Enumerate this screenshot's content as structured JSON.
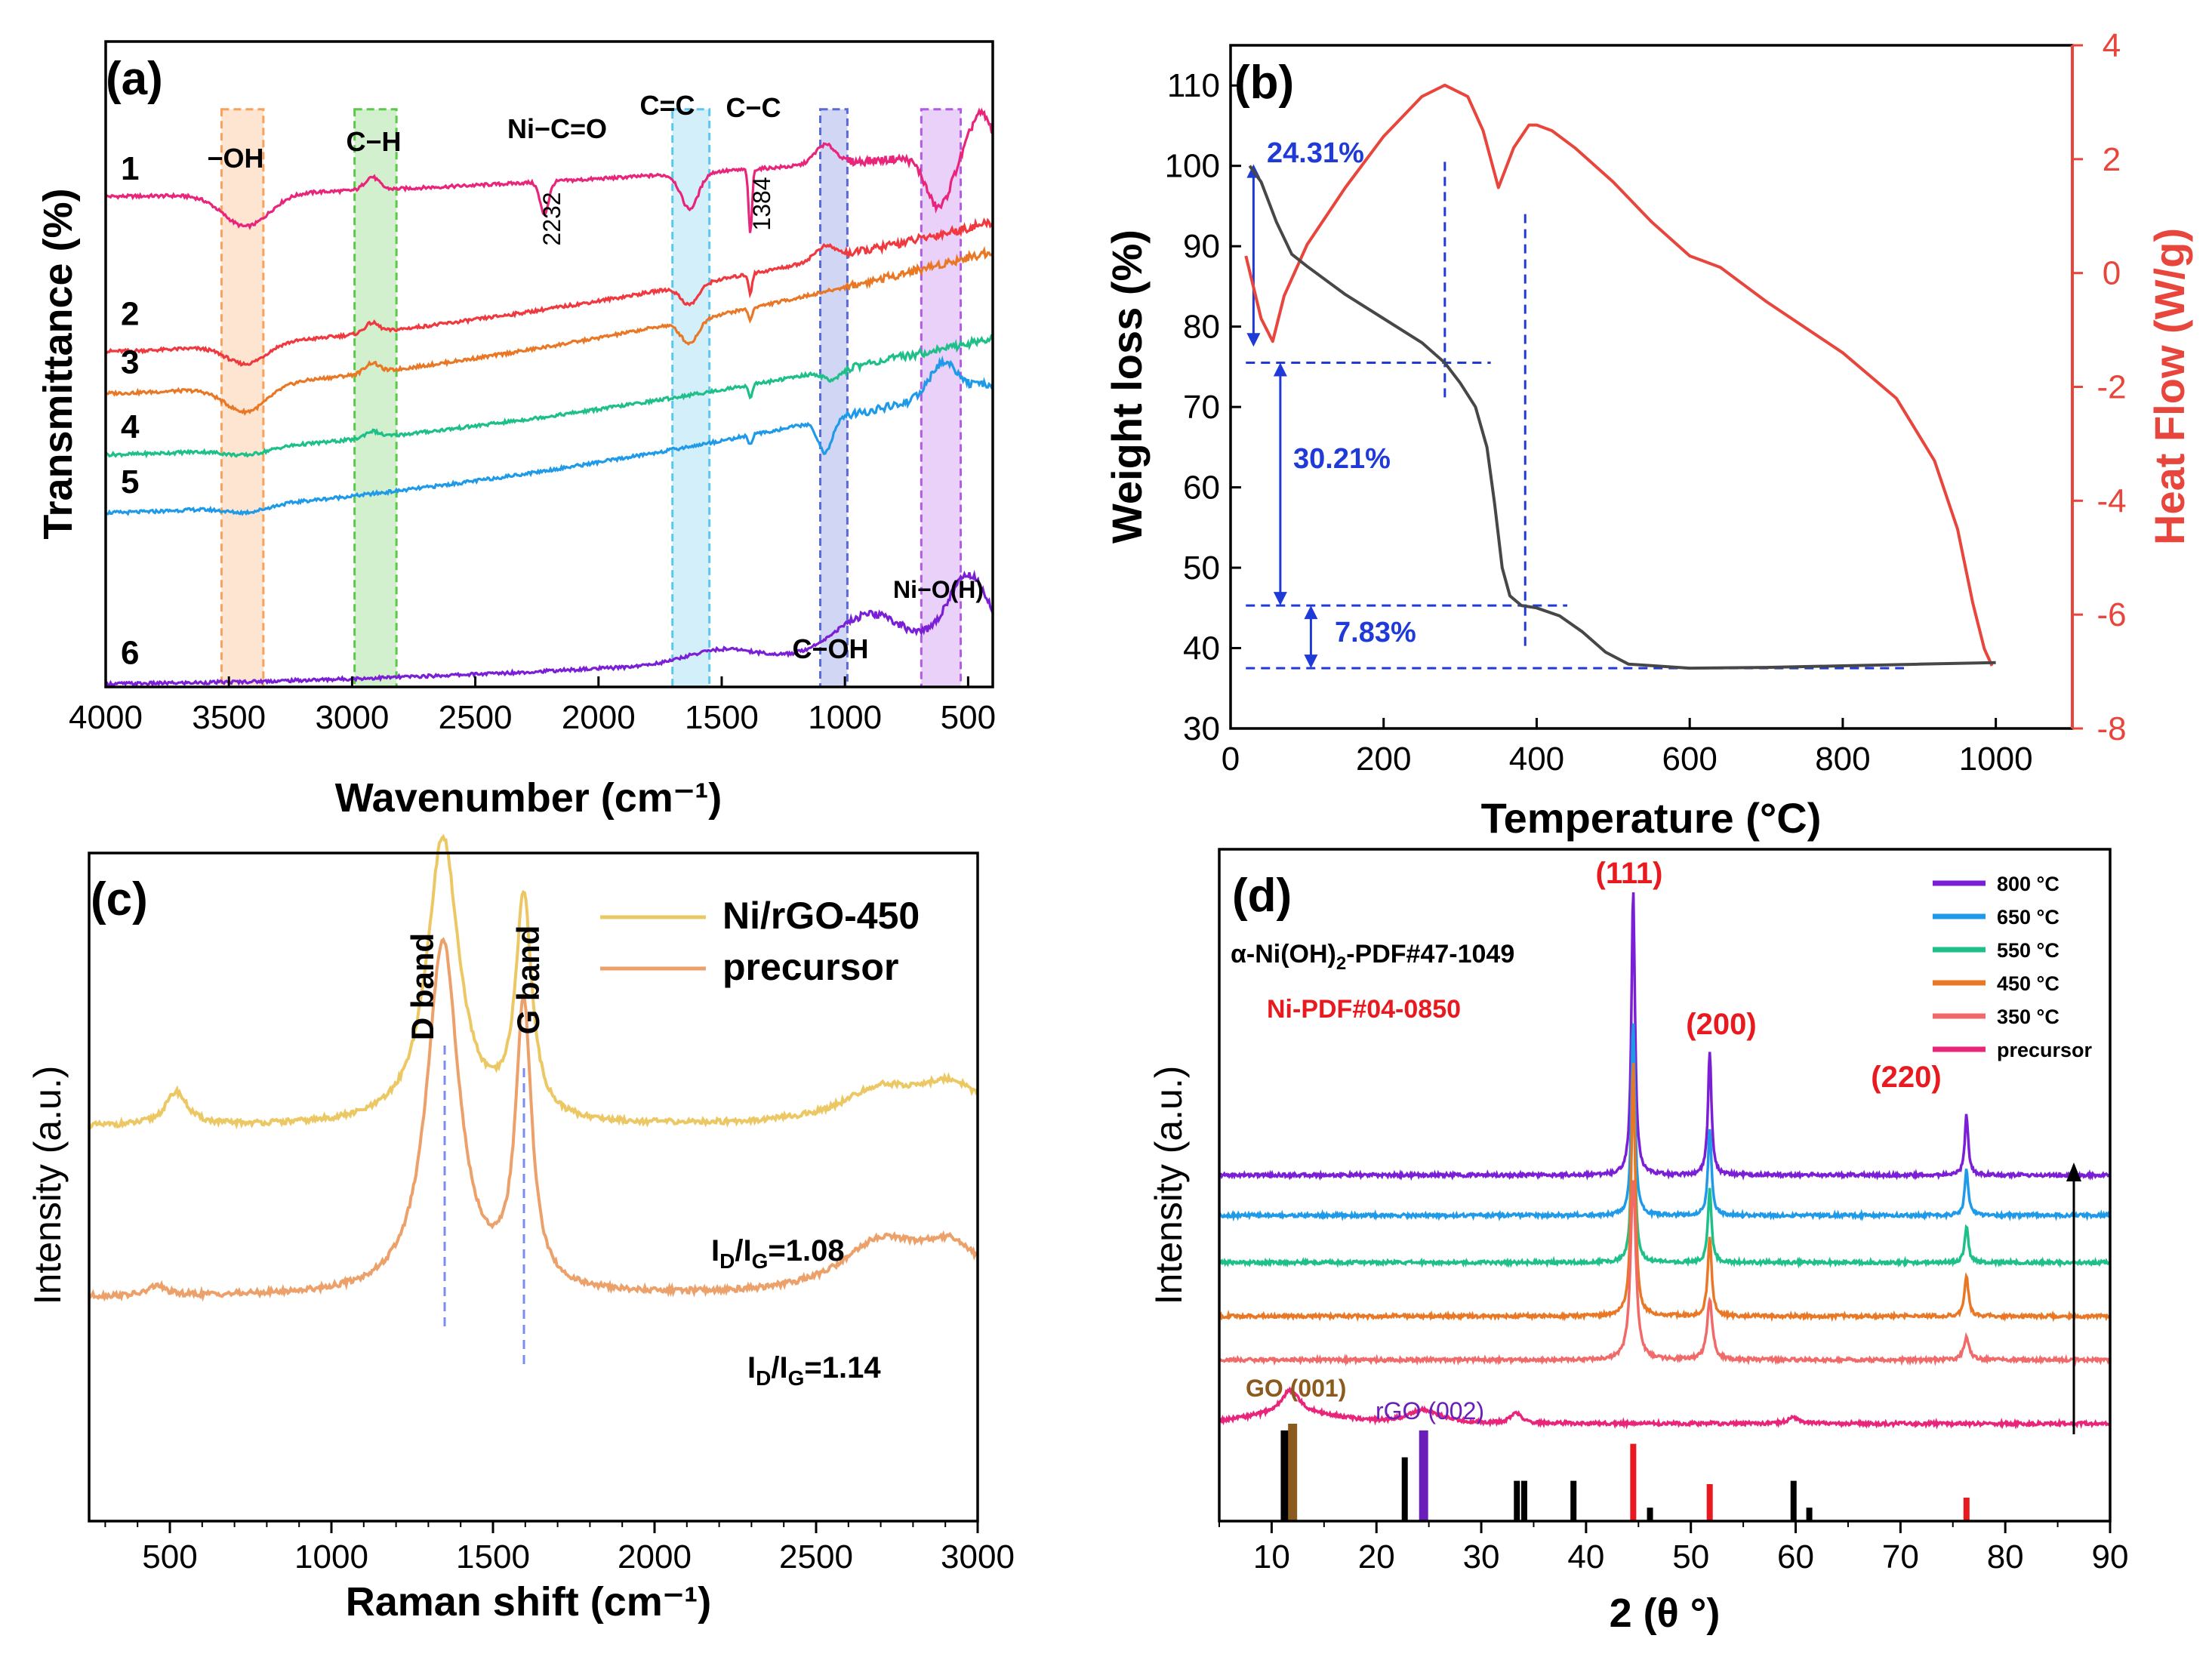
{
  "figure": {
    "panels": [
      "(a)",
      "(b)",
      "(c)",
      "(d)"
    ]
  },
  "colors": {
    "axis": "#000000",
    "heat_axis": "#e8453c",
    "blue_annot": "#1f3ad6",
    "red_label": "#e8191f",
    "s1": "#e8257a",
    "s2": "#f0383f",
    "s3": "#e97826",
    "s4": "#1fbf8a",
    "s5": "#1f9ae8",
    "s6": "#7a1fd6",
    "tga": "#474747",
    "dsc": "#e8453c",
    "raman1": "#ecc864",
    "raman2": "#eca06a",
    "x800": "#7a1fd6",
    "x650": "#1f9ae8",
    "x550": "#1fbf8a",
    "x450": "#e97826",
    "x350": "#f06a6a",
    "xprec": "#e8257a",
    "ref_black": "#000000",
    "ref_go": "#8b5a1e",
    "ref_rgo": "#6a1fb8",
    "ref_ni": "#e8191f"
  },
  "chart_data": [
    {
      "panel": "(a)",
      "type": "line",
      "xlabel": "Wavenumber (cm⁻¹)",
      "ylabel": "Transmittance (%)",
      "xlim": [
        4000,
        400
      ],
      "xticks": [
        4000,
        3500,
        3000,
        2500,
        2000,
        1500,
        1000,
        500
      ],
      "xtick_labels": [
        "4000",
        "3500",
        "3000",
        "2500",
        "2000",
        "1500",
        "1000",
        "500"
      ],
      "ylim": [
        0,
        10
      ],
      "series": [
        {
          "name": "1",
          "color_key": "s1",
          "base": 7.6,
          "slope": 0.7,
          "features": [
            [
              3430,
              -0.5,
              130
            ],
            [
              2920,
              0.2,
              40
            ],
            [
              2220,
              -0.5,
              25
            ],
            [
              1630,
              -0.55,
              50
            ],
            [
              1384,
              -1.0,
              10
            ],
            [
              1080,
              0.3,
              60
            ],
            [
              620,
              -0.8,
              70
            ],
            [
              450,
              0.6,
              60
            ]
          ]
        },
        {
          "name": "2",
          "color_key": "s2",
          "base": 5.2,
          "slope": 2.0,
          "features": [
            [
              3430,
              -0.3,
              110
            ],
            [
              2920,
              0.15,
              40
            ],
            [
              1630,
              -0.3,
              50
            ],
            [
              1384,
              -0.3,
              10
            ],
            [
              1080,
              0.2,
              60
            ]
          ]
        },
        {
          "name": "3",
          "color_key": "s3",
          "base": 4.55,
          "slope": 2.2,
          "features": [
            [
              3430,
              -0.4,
              120
            ],
            [
              2920,
              0.15,
              40
            ],
            [
              1630,
              -0.35,
              50
            ],
            [
              1384,
              -0.2,
              10
            ]
          ]
        },
        {
          "name": "4",
          "color_key": "s4",
          "base": 3.6,
          "slope": 1.8,
          "features": [
            [
              3430,
              -0.1,
              120
            ],
            [
              2920,
              0.1,
              40
            ],
            [
              1384,
              -0.2,
              10
            ],
            [
              1050,
              -0.15,
              50
            ]
          ]
        },
        {
          "name": "5",
          "color_key": "s5",
          "base": 2.7,
          "slope": 2.0,
          "features": [
            [
              3430,
              -0.1,
              120
            ],
            [
              1384,
              -0.15,
              10
            ],
            [
              1080,
              -0.5,
              40
            ],
            [
              600,
              0.5,
              80
            ]
          ]
        },
        {
          "name": "6",
          "color_key": "s6",
          "base": 0.05,
          "slope": 0.6,
          "features": [
            [
              1500,
              0.2,
              200
            ],
            [
              900,
              0.6,
              200
            ],
            [
              500,
              1.1,
              120
            ]
          ]
        }
      ],
      "labels": [
        "1",
        "2",
        "3",
        "4",
        "5",
        "6"
      ],
      "label_y": [
        7.6,
        5.35,
        4.6,
        3.6,
        2.75,
        0.1
      ],
      "regions": [
        {
          "label": "−OH",
          "from": 3530,
          "to": 3360,
          "color": "#f7a25a"
        },
        {
          "label": "C−H",
          "from": 2990,
          "to": 2820,
          "color": "#5cc84a"
        },
        {
          "label": "C=C",
          "from": 1700,
          "to": 1550,
          "color": "#5cc6ee"
        },
        {
          "label": "C−OH",
          "from": 1100,
          "to": 990,
          "color": "#5a6ad6"
        },
        {
          "label": "Ni−O(H)",
          "from": 690,
          "to": 530,
          "color": "#b05ae8"
        }
      ],
      "annotations": [
        "Ni−C=O",
        "C−C",
        "2232",
        "1384"
      ]
    },
    {
      "panel": "(b)",
      "type": "line",
      "xlabel": "Temperature (°C)",
      "ylabel": "Weight loss (%)",
      "y2label": "Heat Flow (W/g)",
      "xlim": [
        0,
        1100
      ],
      "xticks": [
        0,
        200,
        400,
        600,
        800,
        1000
      ],
      "xtick_labels": [
        "0",
        "200",
        "400",
        "600",
        "800",
        "1000"
      ],
      "ylim": [
        30,
        115
      ],
      "yticks": [
        30,
        40,
        50,
        60,
        70,
        80,
        90,
        100,
        110
      ],
      "ytick_labels": [
        "30",
        "40",
        "50",
        "60",
        "70",
        "80",
        "90",
        "100",
        "110"
      ],
      "y2lim": [
        -8,
        4
      ],
      "y2ticks": [
        -8,
        -6,
        -4,
        -2,
        0,
        2,
        4
      ],
      "y2tick_labels": [
        "-8",
        "-6",
        "-4",
        "-2",
        "0",
        "2",
        "4"
      ],
      "weight_loss": {
        "x": [
          25,
          40,
          60,
          80,
          100,
          150,
          200,
          250,
          280,
          300,
          320,
          335,
          345,
          355,
          365,
          380,
          400,
          430,
          460,
          490,
          520,
          600,
          700,
          800,
          900,
          1000
        ],
        "y": [
          100,
          98,
          93,
          89,
          87.5,
          84,
          81,
          78,
          75.5,
          73,
          70,
          65,
          58,
          50,
          46.5,
          45.3,
          45,
          44,
          42,
          39.5,
          38,
          37.5,
          37.6,
          37.8,
          38,
          38.2
        ]
      },
      "heat_flow": {
        "x": [
          20,
          40,
          55,
          70,
          100,
          150,
          200,
          250,
          280,
          310,
          330,
          350,
          370,
          390,
          400,
          420,
          450,
          500,
          550,
          600,
          640,
          700,
          800,
          870,
          920,
          950,
          970,
          985,
          995
        ],
        "y": [
          0.3,
          -0.8,
          -1.2,
          -0.4,
          0.5,
          1.5,
          2.4,
          3.1,
          3.3,
          3.1,
          2.5,
          1.5,
          2.2,
          2.6,
          2.6,
          2.5,
          2.2,
          1.6,
          0.9,
          0.3,
          0.1,
          -0.5,
          -1.4,
          -2.2,
          -3.3,
          -4.5,
          -5.8,
          -6.6,
          -6.9
        ]
      },
      "annotations": [
        "24.31%",
        "30.21%",
        "7.83%"
      ]
    },
    {
      "panel": "(c)",
      "type": "line",
      "xlabel": "Raman shift (cm⁻¹)",
      "ylabel": "Intensity (a.u.)",
      "xlim": [
        250,
        3000
      ],
      "xticks": [
        500,
        1000,
        1500,
        2000,
        2500,
        3000
      ],
      "xtick_labels": [
        "500",
        "1000",
        "1500",
        "2000",
        "2500",
        "3000"
      ],
      "ylim": [
        0,
        10
      ],
      "series": [
        {
          "name": "Ni/rGO-450",
          "color_key": "raman1",
          "base": 5.9,
          "peaks": [
            [
              520,
              0.5,
              40
            ],
            [
              1345,
              4.3,
              60
            ],
            [
              1595,
              3.3,
              30
            ],
            [
              2700,
              0.5,
              150
            ],
            [
              2920,
              0.55,
              120
            ]
          ]
        },
        {
          "name": "precursor",
          "color_key": "raman2",
          "base": 3.35,
          "peaks": [
            [
              460,
              0.15,
              30
            ],
            [
              1345,
              5.3,
              60
            ],
            [
              1595,
              4.2,
              30
            ],
            [
              2700,
              0.75,
              150
            ],
            [
              2920,
              0.65,
              120
            ]
          ]
        }
      ],
      "legend": [
        "Ni/rGO-450",
        "precursor"
      ],
      "band_labels": [
        "D band",
        "G band"
      ],
      "ratios": {
        "sub": "D",
        "sub2": "G",
        "r1": "=1.08",
        "r2": "=1.14",
        "prefix": "I"
      }
    },
    {
      "panel": "(d)",
      "type": "line",
      "xlabel": "2 (θ °)",
      "ylabel": "Intensity (a.u.)",
      "xlim": [
        5,
        90
      ],
      "xticks": [
        10,
        20,
        30,
        40,
        50,
        60,
        70,
        80,
        90
      ],
      "xtick_labels": [
        "10",
        "20",
        "30",
        "40",
        "50",
        "60",
        "70",
        "80",
        "90"
      ],
      "ylim": [
        0,
        10
      ],
      "series": [
        {
          "name": "800 °C",
          "color_key": "x800",
          "base": 5.15,
          "peaks": [
            [
              44.5,
              4.25,
              0.2
            ],
            [
              51.8,
              1.85,
              0.2
            ],
            [
              76.3,
              0.9,
              0.2
            ]
          ]
        },
        {
          "name": "650 °C",
          "color_key": "x650",
          "base": 4.55,
          "peaks": [
            [
              44.5,
              2.9,
              0.2
            ],
            [
              51.8,
              1.3,
              0.2
            ],
            [
              76.3,
              0.7,
              0.2
            ]
          ]
        },
        {
          "name": "550 °C",
          "color_key": "x550",
          "base": 3.85,
          "peaks": [
            [
              44.5,
              2.8,
              0.2
            ],
            [
              51.8,
              1.1,
              0.2
            ],
            [
              76.3,
              0.55,
              0.2
            ]
          ]
        },
        {
          "name": "450 °C",
          "color_key": "x450",
          "base": 3.05,
          "peaks": [
            [
              44.5,
              3.8,
              0.22
            ],
            [
              51.8,
              1.2,
              0.22
            ],
            [
              76.3,
              0.6,
              0.22
            ]
          ]
        },
        {
          "name": "350 °C",
          "color_key": "x350",
          "base": 2.4,
          "peaks": [
            [
              44.5,
              2.7,
              0.3
            ],
            [
              51.8,
              0.9,
              0.3
            ],
            [
              76.3,
              0.35,
              0.3
            ]
          ]
        },
        {
          "name": "precursor",
          "color_key": "xprec",
          "base": 1.45,
          "peaks": [
            [
              11.8,
              0.35,
              1.0
            ],
            [
              24.5,
              0.2,
              2.0
            ],
            [
              33.3,
              0.15,
              0.6
            ],
            [
              59.8,
              0.1,
              0.6
            ]
          ]
        }
      ],
      "legend": [
        "800 °C",
        "650 °C",
        "550 °C",
        "450 °C",
        "350 °C",
        "precursor"
      ],
      "ref_lines": [
        {
          "x": 11.3,
          "h": 1.35,
          "color_key": "ref_black"
        },
        {
          "x": 12.0,
          "h": 1.45,
          "color_key": "ref_go"
        },
        {
          "x": 22.7,
          "h": 0.95,
          "color_key": "ref_black"
        },
        {
          "x": 24.5,
          "h": 1.35,
          "color_key": "ref_rgo"
        },
        {
          "x": 33.4,
          "h": 0.6,
          "color_key": "ref_black"
        },
        {
          "x": 34.1,
          "h": 0.6,
          "color_key": "ref_black"
        },
        {
          "x": 38.8,
          "h": 0.6,
          "color_key": "ref_black"
        },
        {
          "x": 44.5,
          "h": 1.15,
          "color_key": "ref_ni"
        },
        {
          "x": 46.1,
          "h": 0.2,
          "color_key": "ref_black"
        },
        {
          "x": 51.8,
          "h": 0.55,
          "color_key": "ref_ni"
        },
        {
          "x": 59.8,
          "h": 0.6,
          "color_key": "ref_black"
        },
        {
          "x": 61.3,
          "h": 0.2,
          "color_key": "ref_black"
        },
        {
          "x": 76.3,
          "h": 0.35,
          "color_key": "ref_ni"
        }
      ],
      "peak_labels": [
        "(111)",
        "(200)",
        "(220)"
      ],
      "ref_labels": {
        "alpha": "α-Ni(OH)",
        "alpha_sub": "2",
        "alpha_rest": "-PDF#47-1049",
        "ni": "Ni-PDF#04-0850",
        "go": "GO (001)",
        "rgo": "rGO (002)"
      }
    }
  ]
}
